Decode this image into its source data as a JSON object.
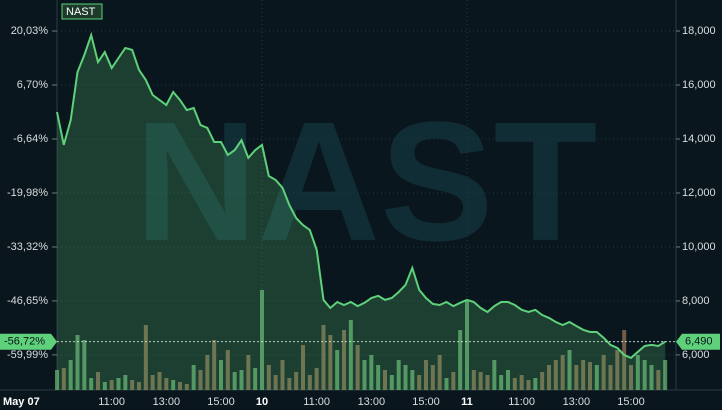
{
  "chart_data": {
    "type": "line",
    "watermark": "NAST",
    "categories": [
      "May 07",
      null,
      null,
      null,
      null,
      null,
      null,
      null,
      "11:00",
      null,
      null,
      null,
      null,
      null,
      null,
      null,
      "13:00",
      null,
      null,
      null,
      null,
      null,
      null,
      null,
      "15:00",
      null,
      null,
      null,
      null,
      null,
      "10",
      null,
      null,
      null,
      null,
      null,
      null,
      null,
      "11:00",
      null,
      null,
      null,
      null,
      null,
      null,
      null,
      "13:00",
      null,
      null,
      null,
      null,
      null,
      null,
      null,
      "15:00",
      null,
      null,
      null,
      null,
      null,
      "11",
      null,
      null,
      null,
      null,
      null,
      null,
      null,
      "11:00",
      null,
      null,
      null,
      null,
      null,
      null,
      null,
      "13:00",
      null,
      null,
      null,
      null,
      null,
      null,
      null,
      "15:00",
      null,
      null,
      null,
      null,
      null
    ],
    "series": [
      {
        "name": "NAST",
        "color": "#5fd17a",
        "axis": "y2",
        "values": [
          15000,
          13780,
          14700,
          16480,
          17110,
          17850,
          16850,
          17220,
          16630,
          17000,
          17370,
          17300,
          16560,
          16190,
          15630,
          15440,
          15260,
          15740,
          15440,
          15070,
          15150,
          14520,
          14410,
          13890,
          13890,
          13410,
          13590,
          13960,
          13300,
          13590,
          13780,
          12630,
          12480,
          12190,
          11560,
          11070,
          10810,
          10630,
          9890,
          8040,
          7740,
          7960,
          7850,
          7960,
          7810,
          7930,
          8110,
          8190,
          8040,
          8110,
          8330,
          8590,
          9220,
          8410,
          8110,
          7890,
          7850,
          7960,
          7810,
          7930,
          8040,
          7960,
          7740,
          7590,
          7810,
          7960,
          7960,
          7850,
          7670,
          7590,
          7670,
          7480,
          7370,
          7220,
          7110,
          7220,
          7070,
          6930,
          6850,
          6850,
          6630,
          6370,
          6260,
          6000,
          5890,
          6110,
          6330,
          6370,
          6330,
          6490
        ]
      }
    ],
    "volume_values": [
      20,
      22,
      30,
      55,
      50,
      12,
      18,
      8,
      10,
      12,
      15,
      10,
      8,
      65,
      15,
      18,
      12,
      10,
      8,
      6,
      25,
      20,
      35,
      50,
      30,
      40,
      18,
      20,
      35,
      22,
      100,
      25,
      15,
      30,
      12,
      18,
      45,
      15,
      22,
      65,
      55,
      40,
      60,
      70,
      45,
      30,
      35,
      25,
      20,
      15,
      30,
      25,
      20,
      15,
      30,
      25,
      35,
      12,
      18,
      60,
      90,
      20,
      18,
      15,
      30,
      15,
      20,
      12,
      15,
      10,
      12,
      18,
      25,
      30,
      35,
      40,
      25,
      30,
      28,
      25,
      35,
      25,
      40,
      60,
      25,
      35,
      30,
      25,
      20,
      30
    ],
    "volume_up_color": "#5e9e68",
    "volume_down_color": "#86674f",
    "ylim": [
      -68.66,
      27.7
    ],
    "yticks": [
      {
        "value": 20.03,
        "label": "20,03%"
      },
      {
        "value": 6.7,
        "label": "6,70%"
      },
      {
        "value": -6.64,
        "label": "-6,64%"
      },
      {
        "value": -19.98,
        "label": "-19,98%"
      },
      {
        "value": -33.32,
        "label": "-33,32%"
      },
      {
        "value": -46.65,
        "label": "-46,65%"
      },
      {
        "value": -59.99,
        "label": "-59,99%"
      }
    ],
    "y2lim": [
      4700,
      19150
    ],
    "y2ticks": [
      {
        "value": 18000,
        "label": "18,000"
      },
      {
        "value": 16000,
        "label": "16,000"
      },
      {
        "value": 14000,
        "label": "14,000"
      },
      {
        "value": 12000,
        "label": "12,000"
      },
      {
        "value": 10000,
        "label": "10,000"
      },
      {
        "value": 8000,
        "label": "8,000"
      },
      {
        "value": 6000,
        "label": "6,000"
      }
    ],
    "last_price": {
      "value": 6490,
      "label": "6,490"
    },
    "last_change": {
      "value": -56.72,
      "label": "-56,72%"
    },
    "grid": true
  }
}
